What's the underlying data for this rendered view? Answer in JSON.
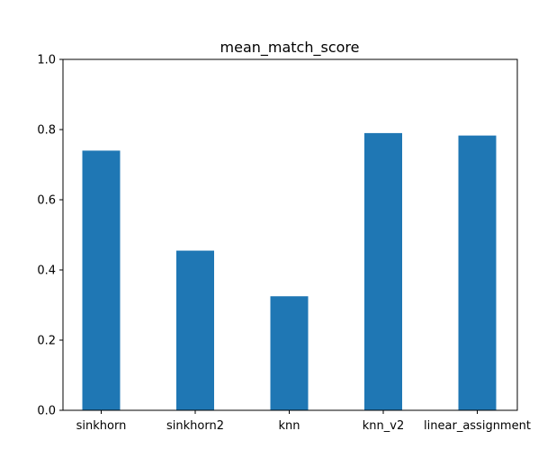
{
  "chart_data": {
    "type": "bar",
    "title": "mean_match_score",
    "xlabel": "",
    "ylabel": "",
    "categories": [
      "sinkhorn",
      "sinkhorn2",
      "knn",
      "knn_v2",
      "linear_assignment"
    ],
    "values": [
      0.74,
      0.455,
      0.325,
      0.79,
      0.783
    ],
    "ylim": [
      0,
      1.0
    ],
    "yticks": [
      "0.0",
      "0.2",
      "0.4",
      "0.6",
      "0.8",
      "1.0"
    ],
    "bar_color": "#1f77b4",
    "grid": false,
    "legend": "none"
  }
}
